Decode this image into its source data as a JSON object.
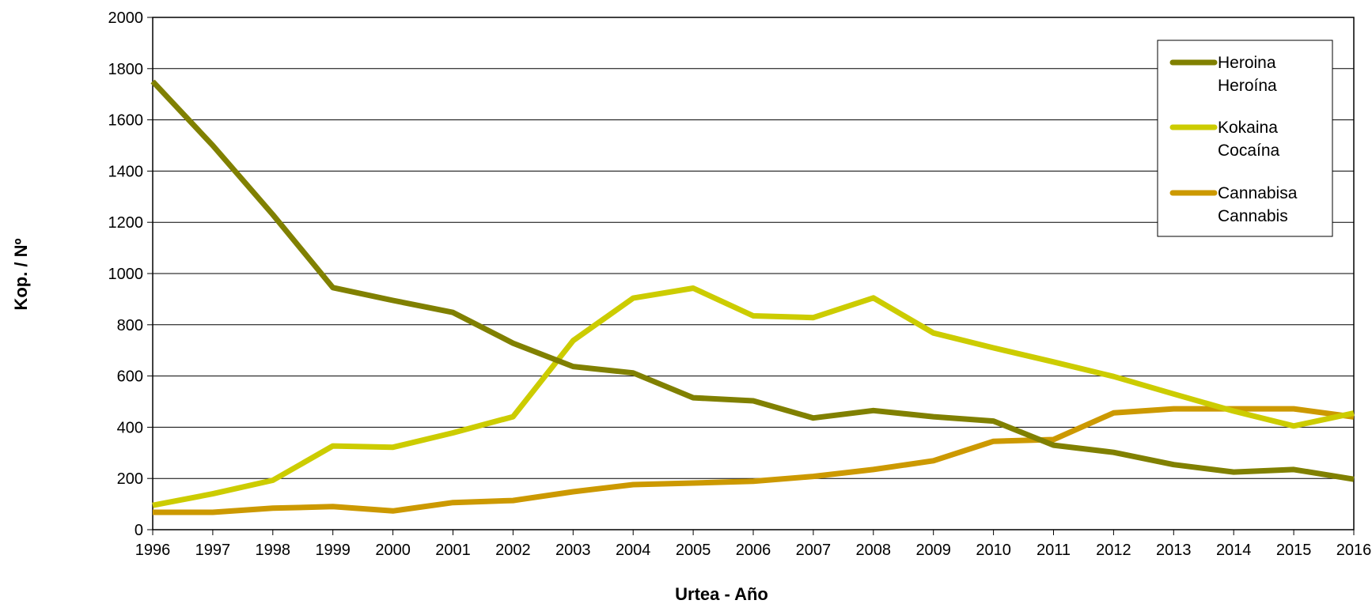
{
  "chart_data": {
    "type": "line",
    "title": "",
    "xlabel": "Urtea - Año",
    "ylabel": "Kop. / Nº",
    "ylim": [
      0,
      2000
    ],
    "yticks": [
      0,
      200,
      400,
      600,
      800,
      1000,
      1200,
      1400,
      1600,
      1800,
      2000
    ],
    "grid": true,
    "legend_position": "top-right",
    "categories": [
      "1996",
      "1997",
      "1998",
      "1999",
      "2000",
      "2001",
      "2002",
      "2003",
      "2004",
      "2005",
      "2006",
      "2007",
      "2008",
      "2009",
      "2010",
      "2011",
      "2012",
      "2013",
      "2014",
      "2015",
      "2016"
    ],
    "series": [
      {
        "name": "Heroina",
        "name_line2": "Heroína",
        "color": "#808000",
        "values": [
          1750,
          1500,
          1230,
          945,
          895,
          848,
          728,
          637,
          612,
          515,
          503,
          436,
          465,
          441,
          424,
          330,
          302,
          254,
          225,
          235,
          197
        ]
      },
      {
        "name": "Kokaina",
        "name_line2": "Cocaína",
        "color": "#CCCC00",
        "values": [
          95,
          140,
          193,
          327,
          322,
          378,
          441,
          738,
          904,
          943,
          835,
          828,
          905,
          768,
          710,
          655,
          598,
          530,
          463,
          405,
          455
        ]
      },
      {
        "name": "Cannabisa",
        "name_line2": "Cannabis",
        "color": "#CC9900",
        "values": [
          68,
          68,
          84,
          90,
          73,
          106,
          114,
          148,
          176,
          182,
          189,
          208,
          235,
          269,
          345,
          352,
          456,
          472,
          472,
          472,
          440
        ]
      }
    ]
  }
}
